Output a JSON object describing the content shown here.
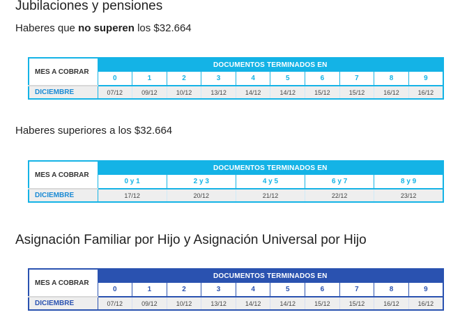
{
  "section1": {
    "title": "Jubilaciones y pensiones",
    "subtitle_prefix": "Haberes que ",
    "subtitle_bold": "no superen",
    "subtitle_suffix": " los $32.664"
  },
  "table1": {
    "label": "MES A COBRAR",
    "header": "DOCUMENTOS TERMINADOS EN",
    "month": "DICIEMBRE",
    "digits": [
      "0",
      "1",
      "2",
      "3",
      "4",
      "5",
      "6",
      "7",
      "8",
      "9"
    ],
    "dates": [
      "07/12",
      "09/12",
      "10/12",
      "13/12",
      "14/12",
      "14/12",
      "15/12",
      "15/12",
      "16/12",
      "16/12"
    ]
  },
  "section2": {
    "subtitle": "Haberes superiores a los $32.664"
  },
  "table2": {
    "label": "MES A COBRAR",
    "header": "DOCUMENTOS TERMINADOS EN",
    "month": "DICIEMBRE",
    "digits": [
      "0 y 1",
      "2 y 3",
      "4 y 5",
      "6 y 7",
      "8 y 9"
    ],
    "dates": [
      "17/12",
      "20/12",
      "21/12",
      "22/12",
      "23/12"
    ]
  },
  "section3": {
    "title": "Asignación Familiar por Hijo y Asignación Universal por Hijo"
  },
  "table3": {
    "label": "MES A COBRAR",
    "header": "DOCUMENTOS TERMINADOS EN",
    "month": "DICIEMBRE",
    "digits": [
      "0",
      "1",
      "2",
      "3",
      "4",
      "5",
      "6",
      "7",
      "8",
      "9"
    ],
    "dates": [
      "07/12",
      "09/12",
      "10/12",
      "13/12",
      "14/12",
      "14/12",
      "15/12",
      "15/12",
      "16/12",
      "16/12"
    ]
  },
  "colors": {
    "light_blue": "#14b3e6",
    "dark_blue": "#2a52b0",
    "row_gray": "#eeeeee"
  }
}
